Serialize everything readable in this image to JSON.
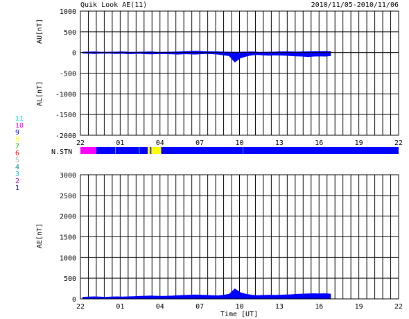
{
  "chart_data": {
    "title": "Quik Look AE(11)",
    "date_range": "2010/11/05-2010/11/06",
    "x_ticks": [
      "22",
      "01",
      "04",
      "07",
      "10",
      "13",
      "16",
      "19",
      "22"
    ],
    "xlabel": "Time [UT]",
    "panels": [
      {
        "name": "AU/AL",
        "type": "area",
        "ylabel_upper": "AU[nT]",
        "ylabel_lower": "AL[nT]",
        "ylim": [
          -2000,
          1000
        ],
        "yticks": [
          1000,
          500,
          0,
          -500,
          -1000,
          -1500,
          -2000
        ],
        "series": [
          {
            "name": "AU",
            "x": [
              0,
              1,
              2,
              3,
              4,
              5,
              6,
              7,
              8,
              9,
              10,
              11,
              12,
              13,
              14,
              15,
              16,
              17,
              18,
              19,
              20,
              21,
              22,
              23,
              24,
              25,
              26,
              27,
              28,
              29,
              30,
              31,
              32,
              33,
              34,
              35,
              36,
              37,
              38,
              39,
              40,
              41,
              42,
              43,
              44
            ],
            "values": [
              10,
              12,
              15,
              10,
              8,
              10,
              12,
              15,
              10,
              8,
              10,
              12,
              15,
              10,
              8,
              10,
              12,
              15,
              20,
              25,
              30,
              25,
              20,
              18,
              15,
              12,
              10,
              8,
              10,
              12,
              15,
              10,
              8,
              10,
              12,
              15,
              18,
              15,
              12,
              15,
              18,
              20,
              22,
              25,
              20
            ]
          },
          {
            "name": "AL",
            "x": [
              0,
              1,
              2,
              3,
              4,
              5,
              6,
              7,
              8,
              9,
              10,
              11,
              12,
              13,
              14,
              15,
              16,
              17,
              18,
              19,
              20,
              21,
              22,
              23,
              24,
              25,
              26,
              27,
              28,
              29,
              30,
              31,
              32,
              33,
              34,
              35,
              36,
              37,
              38,
              39,
              40,
              41,
              42,
              43,
              44
            ],
            "values": [
              -15,
              -20,
              -25,
              -20,
              -15,
              -20,
              -25,
              -20,
              -30,
              -25,
              -20,
              -30,
              -35,
              -30,
              -25,
              -30,
              -35,
              -40,
              -30,
              -35,
              -40,
              -30,
              -25,
              -30,
              -40,
              -60,
              -80,
              -230,
              -130,
              -90,
              -60,
              -50,
              -60,
              -70,
              -60,
              -65,
              -70,
              -80,
              -85,
              -90,
              -100,
              -90,
              -85,
              -90,
              -80
            ]
          }
        ]
      },
      {
        "name": "AE",
        "type": "area",
        "ylabel": "AE[nT]",
        "ylim": [
          0,
          3000
        ],
        "yticks": [
          3000,
          2500,
          2000,
          1500,
          1000,
          500,
          0
        ],
        "series": [
          {
            "name": "AE",
            "x": [
              0,
              1,
              2,
              3,
              4,
              5,
              6,
              7,
              8,
              9,
              10,
              11,
              12,
              13,
              14,
              15,
              16,
              17,
              18,
              19,
              20,
              21,
              22,
              23,
              24,
              25,
              26,
              27,
              28,
              29,
              30,
              31,
              32,
              33,
              34,
              35,
              36,
              37,
              38,
              39,
              40,
              41,
              42,
              43,
              44
            ],
            "values": [
              40,
              45,
              50,
              45,
              40,
              45,
              50,
              45,
              50,
              55,
              60,
              65,
              70,
              65,
              60,
              65,
              70,
              80,
              85,
              90,
              95,
              90,
              85,
              80,
              75,
              90,
              110,
              240,
              150,
              110,
              90,
              80,
              85,
              90,
              85,
              90,
              95,
              100,
              110,
              115,
              120,
              125,
              120,
              125,
              115
            ]
          }
        ]
      }
    ],
    "station_count": {
      "label": "N.STN",
      "levels": [
        "11",
        "10",
        "9",
        "8",
        "7",
        "6",
        "5",
        "4",
        "3",
        "2",
        "1"
      ],
      "level_colors": [
        "#00e0e0",
        "#ff00ff",
        "#0000ff",
        "#ffff00",
        "#00b000",
        "#ff0000",
        "#b0b0b0",
        "#009090",
        "#00c0c0",
        "#c000c0",
        "#0000b0"
      ],
      "segments": [
        {
          "start": 0,
          "end": 6.5,
          "level": "10"
        },
        {
          "start": 6.5,
          "end": 14.2,
          "level": "9"
        },
        {
          "start": 14.2,
          "end": 14.4,
          "level": "11"
        },
        {
          "start": 14.4,
          "end": 24,
          "level": "9"
        },
        {
          "start": 24,
          "end": 24.2,
          "level": "11"
        },
        {
          "start": 24.2,
          "end": 27.5,
          "level": "9"
        },
        {
          "start": 27.5,
          "end": 28.5,
          "level": "8"
        },
        {
          "start": 28.5,
          "end": 29,
          "level": "9"
        },
        {
          "start": 29,
          "end": 33,
          "level": "8"
        },
        {
          "start": 33,
          "end": 66.3,
          "level": "9"
        },
        {
          "start": 66.3,
          "end": 66.5,
          "level": "11"
        },
        {
          "start": 66.5,
          "end": 130,
          "level": "9"
        }
      ]
    },
    "colors": {
      "bar_fill": "#0000ff",
      "axis": "#000000"
    }
  }
}
